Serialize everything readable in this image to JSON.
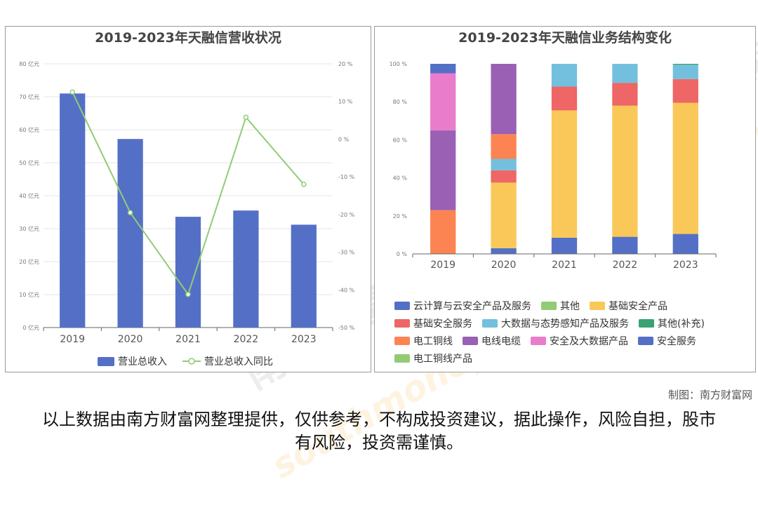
{
  "chart_data": [
    {
      "type": "bar",
      "title": "2019-2023年天融信营收状况",
      "categories": [
        "2019",
        "2020",
        "2021",
        "2022",
        "2023"
      ],
      "y_ticks": [
        "0 亿元",
        "10 亿元",
        "20 亿元",
        "30 亿元",
        "40 亿元",
        "50 亿元",
        "60 亿元",
        "70 亿元",
        "80 亿元"
      ],
      "ylim": [
        0,
        80
      ],
      "y2_ticks": [
        "-50 %",
        "-40 %",
        "-30 %",
        "-20 %",
        "-10 %",
        "0 %",
        "10 %",
        "20 %"
      ],
      "y2lim": [
        -50,
        20
      ],
      "series": [
        {
          "name": "营业总收入",
          "type": "bar",
          "axis": "left",
          "values": [
            71.0,
            57.2,
            33.6,
            35.5,
            31.2
          ]
        },
        {
          "name": "营业总收入同比",
          "type": "line",
          "axis": "right",
          "values": [
            12.5,
            -19.5,
            -41.2,
            5.8,
            -12.0
          ]
        }
      ],
      "colors": {
        "bar": "#5470c6",
        "line": "#91cc75"
      },
      "grid": true,
      "legend": "bottom"
    },
    {
      "type": "bar",
      "stacked": "percent",
      "title": "2019-2023年天融信业务结构变化",
      "categories": [
        "2019",
        "2020",
        "2021",
        "2022",
        "2023"
      ],
      "y_ticks": [
        "0 %",
        "20 %",
        "40 %",
        "60 %",
        "80 %",
        "100 %"
      ],
      "ylim": [
        0,
        100
      ],
      "series": [
        {
          "name": "云计算与云安全产品及服务",
          "color": "#5470c6",
          "values": [
            0,
            3,
            8.5,
            9,
            10.5
          ]
        },
        {
          "name": "其他",
          "color": "#91cc75",
          "values": [
            0,
            0,
            0,
            0,
            0
          ]
        },
        {
          "name": "基础安全产品",
          "color": "#fac858",
          "values": [
            0,
            34.5,
            67,
            69,
            69
          ]
        },
        {
          "name": "基础安全服务",
          "color": "#ee6666",
          "values": [
            0,
            6.5,
            12.5,
            12,
            12.5
          ]
        },
        {
          "name": "大数据与态势感知产品及服务",
          "color": "#73c0de",
          "values": [
            0,
            6,
            12,
            10,
            7.5
          ]
        },
        {
          "name": "其他(补充)",
          "color": "#3ba272",
          "values": [
            0,
            0,
            0,
            0,
            0.5
          ]
        },
        {
          "name": "电工铜线",
          "color": "#fc8452",
          "values": [
            23,
            13,
            0,
            0,
            0
          ]
        },
        {
          "name": "电线电缆",
          "color": "#9a60b4",
          "values": [
            42,
            37,
            0,
            0,
            0
          ]
        },
        {
          "name": "安全及大数据产品",
          "color": "#ea7ccc",
          "values": [
            30,
            0,
            0,
            0,
            0
          ]
        },
        {
          "name": "安全服务",
          "color": "#5470c6",
          "values": [
            5,
            0,
            0,
            0,
            0
          ]
        },
        {
          "name": "电工铜线产品",
          "color": "#91cc75",
          "values": [
            0,
            0,
            0,
            0,
            0
          ]
        }
      ],
      "grid": false,
      "legend": "bottom"
    }
  ],
  "watermark": {
    "cn": "南方财富网",
    "en": "southmoney.com"
  },
  "credit": "制图：南方财富网",
  "disclaimer": "以上数据由南方财富网整理提供，仅供参考，不构成投资建议，据此操作，风险自担，股市有风险，投资需谨慎。"
}
